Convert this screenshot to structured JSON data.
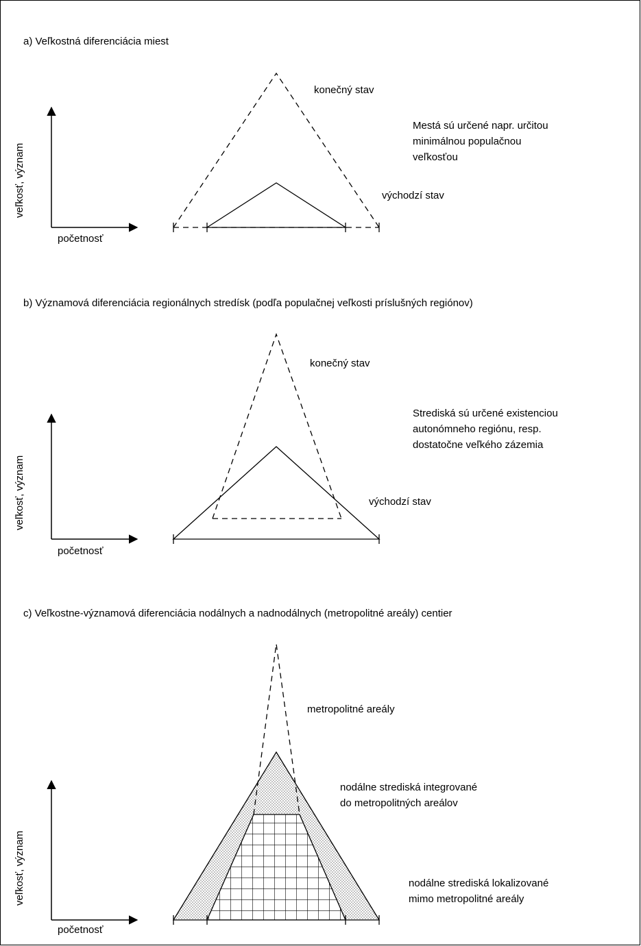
{
  "panels": [
    {
      "title": "a) Veľkostná diferenciácia miest",
      "axis_y": "veľkosť, význam",
      "axis_x": "početnosť",
      "label_final": "konečný stav",
      "label_initial": "východzí stav",
      "note": [
        "Mestá sú určené napr. určitou",
        "minimálnou populačnou",
        "veľkosťou"
      ]
    },
    {
      "title": "b) Významová diferenciácia regionálnych stredísk (podľa populačnej veľkosti príslušných regiónov)",
      "axis_y": "veľkosť, význam",
      "axis_x": "početnosť",
      "label_final": "konečný stav",
      "label_initial": "východzí stav",
      "note": [
        "Strediská sú určené existenciou",
        "autonómneho regiónu, resp.",
        "dostatočne veľkého zázemia"
      ]
    },
    {
      "title": "c) Veľkostne-významová diferenciácia nodálnych a nadnodálnych (metropolitné areály) centier",
      "axis_y": "veľkosť, význam",
      "axis_x": "početnosť",
      "label_metro": "metropolitné areály",
      "label_integrated": [
        "nodálne strediská integrované",
        "do metropolitných areálov"
      ],
      "label_outside": [
        "nodálne strediská lokalizované",
        "mimo metropolitné areály"
      ]
    }
  ],
  "colors": {
    "line": "#000000",
    "dots": "#7a7a7a",
    "background": "#ffffff"
  }
}
